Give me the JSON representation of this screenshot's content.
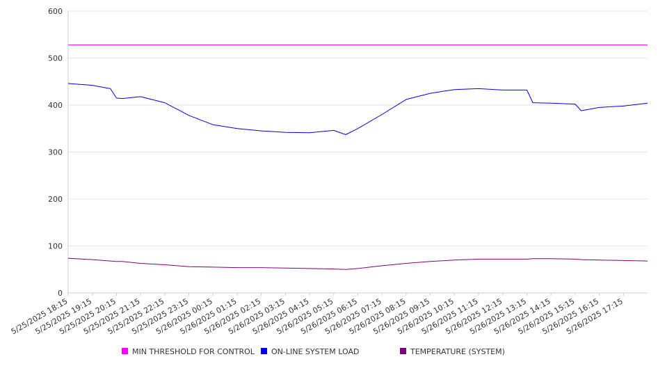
{
  "chart_data": {
    "type": "line",
    "ylim": [
      0,
      600
    ],
    "y_ticks": [
      0,
      100,
      200,
      300,
      400,
      500,
      600
    ],
    "x_tick_labels": [
      "5/25/2025 18:15",
      "5/25/2025 19:15",
      "5/25/2025 20:15",
      "5/25/2025 21:15",
      "5/25/2025 22:15",
      "5/25/2025 23:15",
      "5/26/2025 00:15",
      "5/26/2025 01:15",
      "5/26/2025 02:15",
      "5/26/2025 03:15",
      "5/26/2025 04:15",
      "5/26/2025 05:15",
      "5/26/2025 06:15",
      "5/26/2025 07:15",
      "5/26/2025 08:15",
      "5/26/2025 09:15",
      "5/26/2025 10:15",
      "5/26/2025 11:15",
      "5/26/2025 12:15",
      "5/26/2025 13:15",
      "5/26/2025 14:15",
      "5/26/2025 15:15",
      "5/26/2025 16:15",
      "5/26/2025 17:15"
    ],
    "x": [
      "5/25/2025 18:15",
      "5/25/2025 19:15",
      "5/25/2025 20:00",
      "5/25/2025 20:15",
      "5/25/2025 20:30",
      "5/25/2025 21:15",
      "5/25/2025 22:15",
      "5/25/2025 23:15",
      "5/26/2025 00:15",
      "5/26/2025 01:15",
      "5/26/2025 02:15",
      "5/26/2025 03:15",
      "5/26/2025 04:15",
      "5/26/2025 05:15",
      "5/26/2025 05:45",
      "5/26/2025 06:15",
      "5/26/2025 07:15",
      "5/26/2025 08:15",
      "5/26/2025 09:15",
      "5/26/2025 10:15",
      "5/26/2025 11:15",
      "5/26/2025 12:15",
      "5/26/2025 13:15",
      "5/26/2025 13:30",
      "5/26/2025 14:15",
      "5/26/2025 15:15",
      "5/26/2025 15:30",
      "5/26/2025 16:15",
      "5/26/2025 17:15",
      "5/26/2025 18:15"
    ],
    "series": [
      {
        "name": "MIN THRESHOLD FOR CONTROL",
        "color": "#ff00ff",
        "values": [
          528,
          528,
          528,
          528,
          528,
          528,
          528,
          528,
          528,
          528,
          528,
          528,
          528,
          528,
          528,
          528,
          528,
          528,
          528,
          528,
          528,
          528,
          528,
          528,
          528,
          528,
          528,
          528,
          528,
          528
        ]
      },
      {
        "name": "ON-LINE SYSTEM LOAD",
        "color": "#0000ee",
        "values": [
          446,
          442,
          435,
          415,
          414,
          418,
          405,
          378,
          358,
          350,
          345,
          342,
          341,
          346,
          337,
          350,
          380,
          412,
          425,
          433,
          435,
          432,
          432,
          405,
          404,
          402,
          388,
          395,
          398,
          404
        ]
      },
      {
        "name": "TEMPERATURE (SYSTEM)",
        "color": "#800080",
        "values": [
          74,
          71,
          68,
          67,
          67,
          63,
          60,
          56,
          55,
          54,
          54,
          53,
          52,
          51,
          50,
          52,
          58,
          63,
          67,
          70,
          72,
          72,
          72,
          73,
          73,
          72,
          71,
          70,
          69,
          68
        ]
      }
    ],
    "grid": true,
    "legend_position": "bottom"
  }
}
